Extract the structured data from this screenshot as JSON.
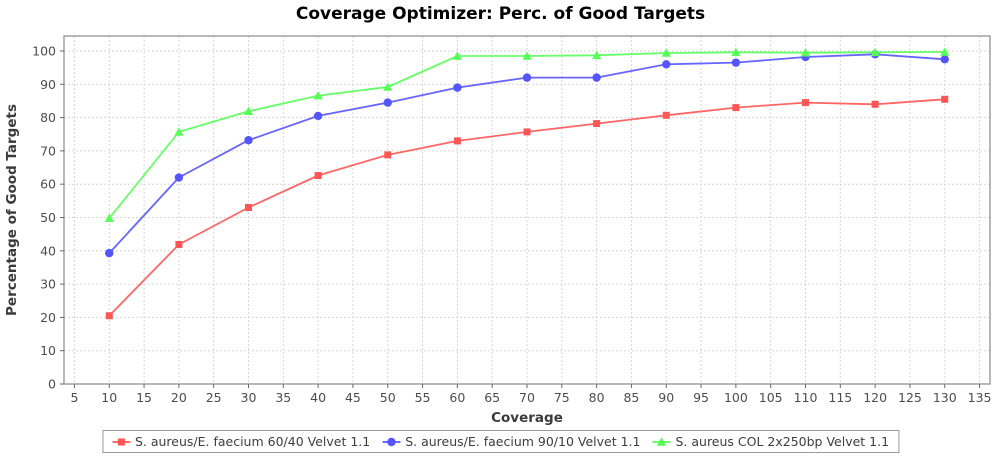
{
  "title": "Coverage Optimizer: Perc. of Good Targets",
  "chart_data": {
    "type": "line",
    "title": "Coverage Optimizer: Perc. of Good Targets",
    "xlabel": "Coverage",
    "ylabel": "Percentage of Good Targets",
    "x": [
      10,
      20,
      30,
      40,
      50,
      60,
      70,
      80,
      90,
      100,
      110,
      120,
      130
    ],
    "series": [
      {
        "name": "S. aureus/E. faecium 60/40 Velvet 1.1",
        "color": "#ff5555",
        "marker": "square",
        "values": [
          20.5,
          41.9,
          53.0,
          62.6,
          68.8,
          73.0,
          75.7,
          78.2,
          80.7,
          83.0,
          84.5,
          84.0,
          85.5
        ]
      },
      {
        "name": "S. aureus/E. faecium 90/10 Velvet 1.1",
        "color": "#5555ff",
        "marker": "circle",
        "values": [
          39.3,
          62.0,
          73.2,
          80.5,
          84.5,
          89.0,
          92.0,
          92.0,
          96.0,
          96.5,
          98.2,
          99.0,
          97.5
        ]
      },
      {
        "name": "S. aureus COL 2x250bp Velvet 1.1",
        "color": "#55ff55",
        "marker": "triangle",
        "values": [
          49.8,
          75.7,
          81.9,
          86.6,
          89.2,
          98.5,
          98.5,
          98.7,
          99.4,
          99.6,
          99.5,
          99.6,
          99.7
        ]
      }
    ],
    "x_ticks": [
      5,
      10,
      15,
      20,
      25,
      30,
      35,
      40,
      45,
      50,
      55,
      60,
      65,
      70,
      75,
      80,
      85,
      90,
      95,
      100,
      105,
      110,
      115,
      120,
      125,
      130,
      135
    ],
    "y_ticks": [
      0,
      10,
      20,
      30,
      40,
      50,
      60,
      70,
      80,
      90,
      100
    ],
    "xlim": [
      3.5,
      136.5
    ],
    "ylim": [
      0,
      104.5
    ],
    "grid": true,
    "legend_position": "bottom",
    "colors": {
      "background": "#ffffff",
      "grid": "#d6d6d6",
      "plot_border": "#888888",
      "tick_mark": "#666666",
      "tick_label": "#4d4d4d",
      "axis_label": "#3b3b3b",
      "title": "#000000",
      "legend_border": "#9a9a9a",
      "legend_text": "#3d3d3d"
    }
  }
}
